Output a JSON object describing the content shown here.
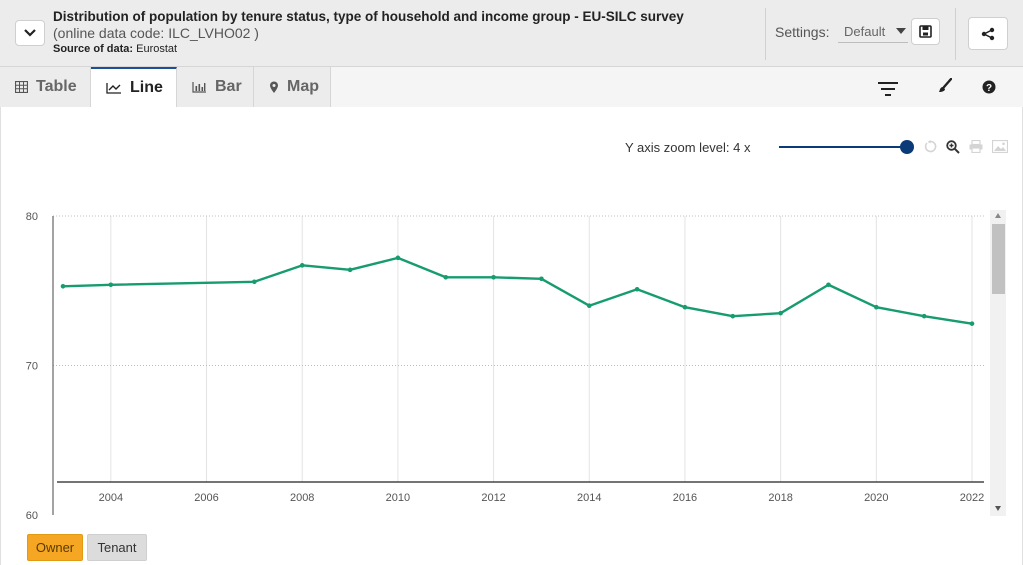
{
  "header": {
    "title": "Distribution of population by tenure status, type of household and income group - EU-SILC survey",
    "code": "(online data code: ILC_LVHO02 )",
    "source_label": "Source of data:",
    "source_value": "Eurostat",
    "settings_label": "Settings:",
    "settings_value": "Default"
  },
  "tabs": [
    {
      "label": "Table",
      "icon": "table-icon"
    },
    {
      "label": "Line",
      "icon": "line-chart-icon"
    },
    {
      "label": "Bar",
      "icon": "bar-chart-icon"
    },
    {
      "label": "Map",
      "icon": "map-pin-icon"
    }
  ],
  "active_tab": "Line",
  "zoom": {
    "label": "Y axis zoom level: 4 x",
    "level": 4
  },
  "legend": [
    {
      "label": "Owner",
      "color": "#f5a623",
      "active": true
    },
    {
      "label": "Tenant",
      "color": "#dcdcdc",
      "active": false
    }
  ],
  "colors": {
    "accent": "#0b3a78",
    "series": "#169c6e",
    "tab_active_border": "#1c4e9b"
  },
  "chart_data": {
    "type": "line",
    "x": [
      2003,
      2004,
      2007,
      2008,
      2009,
      2010,
      2011,
      2012,
      2013,
      2014,
      2015,
      2016,
      2017,
      2018,
      2019,
      2020,
      2021,
      2022
    ],
    "series": [
      {
        "name": "Owner",
        "values": [
          75.3,
          75.4,
          75.6,
          76.7,
          76.4,
          77.2,
          75.9,
          75.9,
          75.8,
          74.0,
          75.1,
          73.9,
          73.3,
          73.5,
          75.4,
          73.9,
          73.3,
          72.8
        ]
      }
    ],
    "xticks": [
      2004,
      2006,
      2008,
      2010,
      2012,
      2014,
      2016,
      2018,
      2020,
      2022
    ],
    "yticks": [
      60,
      70,
      80
    ],
    "ylim": [
      60,
      80
    ],
    "xlim": [
      2003,
      2022
    ],
    "grid": true
  }
}
